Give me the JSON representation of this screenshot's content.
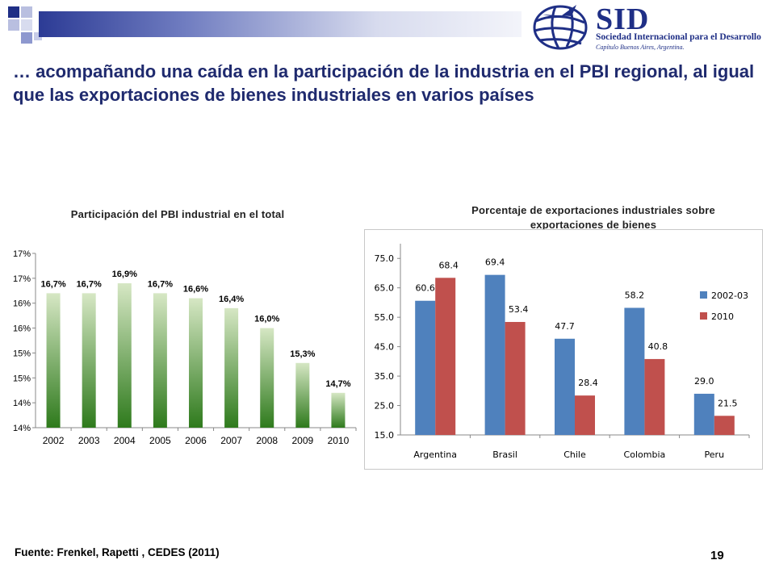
{
  "header": {
    "logo_name": "SID",
    "logo_subtitle": "Sociedad Internacional para el Desarrollo",
    "logo_subtitle2": "Capítulo Buenos Aires, Argentina.",
    "logo_icon": "globe-icon",
    "colors": {
      "brand": "#1f2f86",
      "title": "#1f2a6e"
    }
  },
  "slide": {
    "title": "… acompañando una caída en la participación de la industria en el PBI regional, al igual que las exportaciones de bienes industriales en varios países",
    "source": "Fuente: Frenkel, Rapetti , CEDES (2011)",
    "page_number": "19"
  },
  "chart_data": [
    {
      "type": "bar",
      "title": "Participación del PBI industrial en el total",
      "categories": [
        "2002",
        "2003",
        "2004",
        "2005",
        "2006",
        "2007",
        "2008",
        "2009",
        "2010"
      ],
      "values": [
        16.7,
        16.7,
        16.9,
        16.7,
        16.6,
        16.4,
        16.0,
        15.3,
        14.7
      ],
      "data_labels": [
        "16,7%",
        "16,7%",
        "16,9%",
        "16,7%",
        "16,6%",
        "16,4%",
        "16,0%",
        "15,3%",
        "14,7%"
      ],
      "y_tick_labels": [
        "14%",
        "14%",
        "15%",
        "15%",
        "16%",
        "16%",
        "17%",
        "17%"
      ],
      "ylim": [
        14.0,
        17.5
      ],
      "grid": false,
      "colors": {
        "bar_top": "#d6e7c4",
        "bar_bottom": "#2e7a1c"
      }
    },
    {
      "type": "bar",
      "title": "Porcentaje de exportaciones industriales sobre exportaciones de bienes",
      "categories": [
        "Argentina",
        "Brasil",
        "Chile",
        "Colombia",
        "Peru"
      ],
      "series": [
        {
          "name": "2002-03",
          "values": [
            60.6,
            69.4,
            47.7,
            58.2,
            29.0
          ],
          "labels": [
            "60.6",
            "69.4",
            "47.7",
            "58.2",
            "29.0"
          ],
          "color": "#4f81bd"
        },
        {
          "name": "2010",
          "values": [
            68.4,
            53.4,
            28.4,
            40.8,
            21.5
          ],
          "labels": [
            "68.4",
            "53.4",
            "28.4",
            "40.8",
            "21.5"
          ],
          "color": "#c0504d"
        }
      ],
      "y_ticks": [
        15.0,
        25.0,
        35.0,
        45.0,
        55.0,
        65.0,
        75.0
      ],
      "y_tick_labels": [
        "15.0",
        "25.0",
        "35.0",
        "45.0",
        "55.0",
        "65.0",
        "75.0"
      ],
      "ylim": [
        15.0,
        80.0
      ],
      "legend_position": "right",
      "grid": false
    }
  ]
}
